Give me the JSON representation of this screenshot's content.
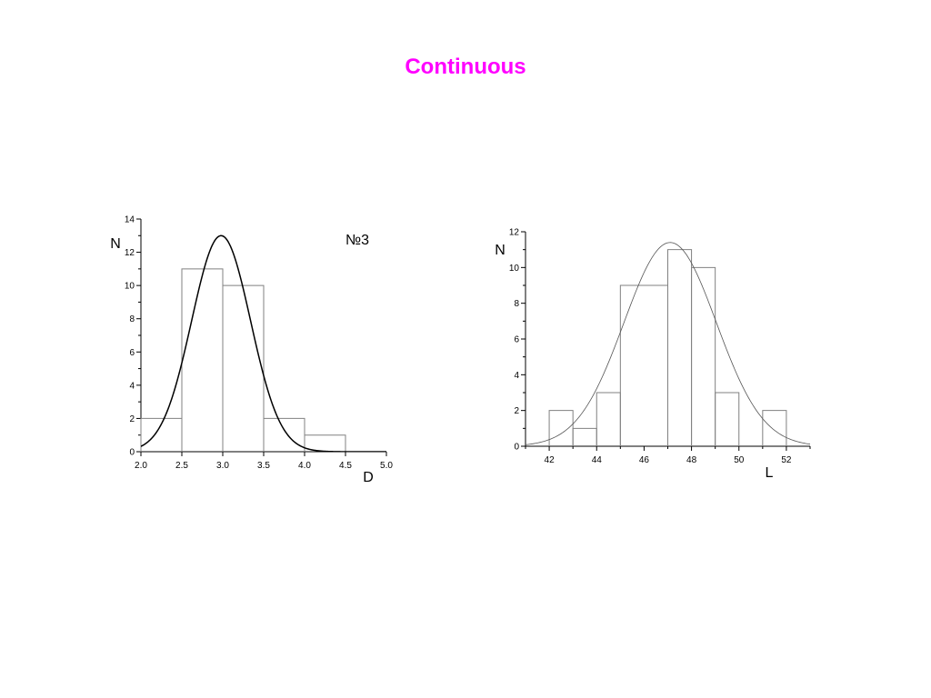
{
  "slide": {
    "title": "Continuous",
    "title_color": "#ff00ff"
  },
  "chart_data": [
    {
      "type": "bar",
      "subtype": "histogram-with-fitted-curve",
      "title": "",
      "annotation": "№3",
      "xlabel": "D",
      "ylabel": "N",
      "xlim": [
        2.0,
        5.0
      ],
      "ylim": [
        0,
        14
      ],
      "x_ticks": [
        "2.0",
        "2.5",
        "3.0",
        "3.5",
        "4.0",
        "4.5",
        "5.0"
      ],
      "y_ticks": [
        "0",
        "2",
        "4",
        "6",
        "8",
        "10",
        "12",
        "14"
      ],
      "bins": [
        {
          "x0": 2.0,
          "x1": 2.5,
          "value": 2
        },
        {
          "x0": 2.5,
          "x1": 3.0,
          "value": 11
        },
        {
          "x0": 3.0,
          "x1": 3.5,
          "value": 10
        },
        {
          "x0": 3.5,
          "x1": 4.0,
          "value": 2
        },
        {
          "x0": 4.0,
          "x1": 4.5,
          "value": 1
        }
      ],
      "fit_curve": {
        "kind": "gaussian",
        "peak": 13.0,
        "center": 2.98,
        "sigma": 0.36
      },
      "histogram_color": "#808080",
      "curve_color": "#000000"
    },
    {
      "type": "bar",
      "subtype": "histogram-with-fitted-curve",
      "title": "",
      "xlabel": "L",
      "ylabel": "N",
      "xlim": [
        41,
        53
      ],
      "ylim": [
        0,
        12
      ],
      "x_ticks": [
        "42",
        "44",
        "46",
        "48",
        "50",
        "52"
      ],
      "y_ticks": [
        "0",
        "2",
        "4",
        "6",
        "8",
        "10",
        "12"
      ],
      "bins": [
        {
          "x0": 42,
          "x1": 43,
          "value": 2
        },
        {
          "x0": 43,
          "x1": 44,
          "value": 1
        },
        {
          "x0": 44,
          "x1": 45,
          "value": 3
        },
        {
          "x0": 45,
          "x1": 47,
          "value": 9
        },
        {
          "x0": 47,
          "x1": 48,
          "value": 11
        },
        {
          "x0": 48,
          "x1": 49,
          "value": 10
        },
        {
          "x0": 49,
          "x1": 50,
          "value": 3
        },
        {
          "x0": 50,
          "x1": 51,
          "value": 0
        },
        {
          "x0": 51,
          "x1": 52,
          "value": 2
        }
      ],
      "fit_curve": {
        "kind": "gaussian",
        "peak": 11.4,
        "center": 47.1,
        "sigma": 1.95
      },
      "histogram_color": "#808080",
      "curve_color": "#555555"
    }
  ]
}
